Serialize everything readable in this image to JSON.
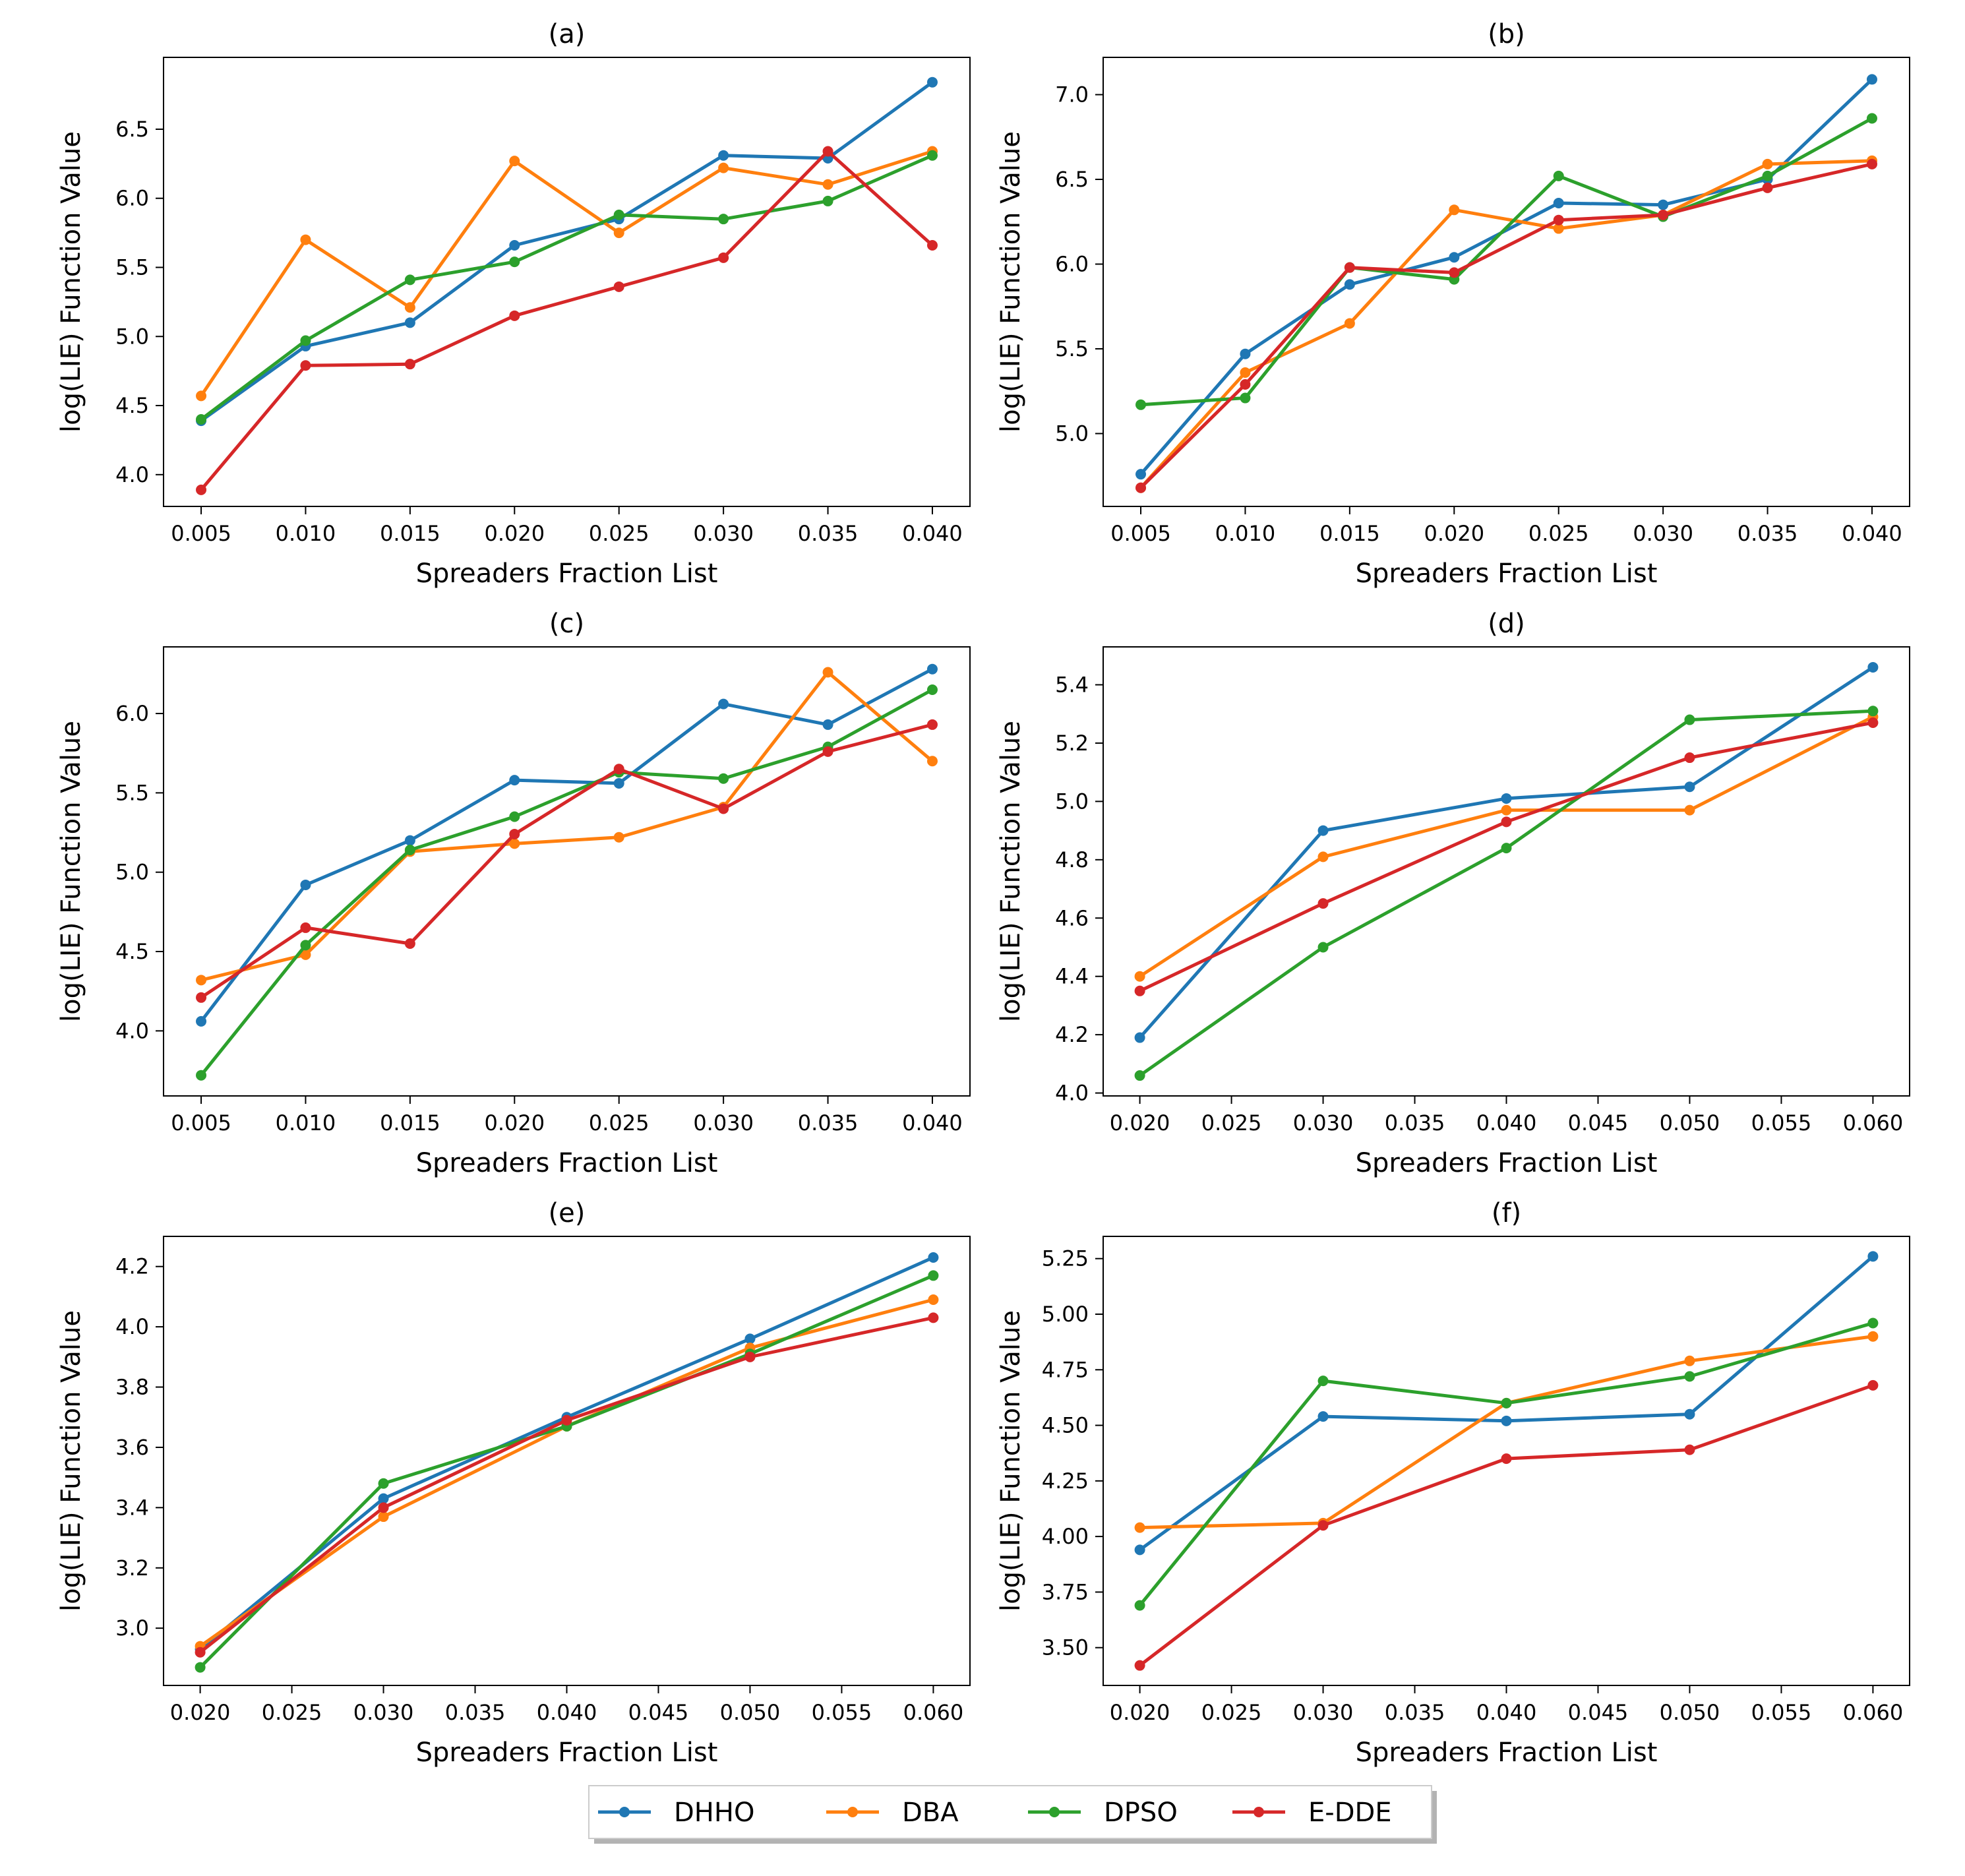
{
  "legend": {
    "placement": "bottom-center",
    "entries": [
      {
        "name": "DHHO",
        "color": "#1f77b4"
      },
      {
        "name": "DBA",
        "color": "#ff7f0e"
      },
      {
        "name": "DPSO",
        "color": "#2ca02c"
      },
      {
        "name": "E-DDE",
        "color": "#d62728"
      }
    ]
  },
  "chart_data": [
    {
      "type": "line",
      "title": "(a)",
      "xlabel": "Spreaders Fraction List",
      "ylabel": "log(LIE) Function Value",
      "x": [
        0.005,
        0.01,
        0.015,
        0.02,
        0.025,
        0.03,
        0.035,
        0.04
      ],
      "xticks": [
        "0.005",
        "0.010",
        "0.015",
        "0.020",
        "0.025",
        "0.030",
        "0.035",
        "0.040"
      ],
      "xlim": [
        0.0032,
        0.0418
      ],
      "yticks": [
        "4.0",
        "4.5",
        "5.0",
        "5.5",
        "6.0",
        "6.5"
      ],
      "ylim": [
        3.77,
        7.02
      ],
      "series": [
        {
          "name": "DHHO",
          "values": [
            4.39,
            4.93,
            5.1,
            5.66,
            5.85,
            6.31,
            6.29,
            6.84
          ]
        },
        {
          "name": "DBA",
          "values": [
            4.57,
            5.7,
            5.21,
            6.27,
            5.75,
            6.22,
            6.1,
            6.34
          ]
        },
        {
          "name": "DPSO",
          "values": [
            4.4,
            4.97,
            5.41,
            5.54,
            5.88,
            5.85,
            5.98,
            6.31
          ]
        },
        {
          "name": "E-DDE",
          "values": [
            3.89,
            4.79,
            4.8,
            5.15,
            5.36,
            5.57,
            6.34,
            5.66
          ]
        }
      ]
    },
    {
      "type": "line",
      "title": "(b)",
      "xlabel": "Spreaders Fraction List",
      "ylabel": "log(LIE) Function Value",
      "x": [
        0.005,
        0.01,
        0.015,
        0.02,
        0.025,
        0.03,
        0.035,
        0.04
      ],
      "xticks": [
        "0.005",
        "0.010",
        "0.015",
        "0.020",
        "0.025",
        "0.030",
        "0.035",
        "0.040"
      ],
      "xlim": [
        0.0032,
        0.0418
      ],
      "yticks": [
        "5.0",
        "5.5",
        "6.0",
        "6.5",
        "7.0"
      ],
      "ylim": [
        4.57,
        7.22
      ],
      "series": [
        {
          "name": "DHHO",
          "values": [
            4.76,
            5.47,
            5.88,
            6.04,
            6.36,
            6.35,
            6.5,
            7.09
          ]
        },
        {
          "name": "DBA",
          "values": [
            4.68,
            5.36,
            5.65,
            6.32,
            6.21,
            6.29,
            6.59,
            6.61
          ]
        },
        {
          "name": "DPSO",
          "values": [
            5.17,
            5.21,
            5.98,
            5.91,
            6.52,
            6.28,
            6.52,
            6.86
          ]
        },
        {
          "name": "E-DDE",
          "values": [
            4.68,
            5.29,
            5.98,
            5.95,
            6.26,
            6.29,
            6.45,
            6.59
          ]
        }
      ]
    },
    {
      "type": "line",
      "title": "(c)",
      "xlabel": "Spreaders Fraction List",
      "ylabel": "log(LIE) Function Value",
      "x": [
        0.005,
        0.01,
        0.015,
        0.02,
        0.025,
        0.03,
        0.035,
        0.04
      ],
      "xticks": [
        "0.005",
        "0.010",
        "0.015",
        "0.020",
        "0.025",
        "0.030",
        "0.035",
        "0.040"
      ],
      "xlim": [
        0.0032,
        0.0418
      ],
      "yticks": [
        "4.0",
        "4.5",
        "5.0",
        "5.5",
        "6.0"
      ],
      "ylim": [
        3.59,
        6.42
      ],
      "series": [
        {
          "name": "DHHO",
          "values": [
            4.06,
            4.92,
            5.2,
            5.58,
            5.56,
            6.06,
            5.93,
            6.28
          ]
        },
        {
          "name": "DBA",
          "values": [
            4.32,
            4.48,
            5.13,
            5.18,
            5.22,
            5.41,
            6.26,
            5.7
          ]
        },
        {
          "name": "DPSO",
          "values": [
            3.72,
            4.54,
            5.14,
            5.35,
            5.63,
            5.59,
            5.79,
            6.15
          ]
        },
        {
          "name": "E-DDE",
          "values": [
            4.21,
            4.65,
            4.55,
            5.24,
            5.65,
            5.4,
            5.76,
            5.93
          ]
        }
      ]
    },
    {
      "type": "line",
      "title": "(d)",
      "xlabel": "Spreaders Fraction List",
      "ylabel": "log(LIE) Function Value",
      "x": [
        0.02,
        0.03,
        0.04,
        0.05,
        0.06
      ],
      "xticks": [
        "0.020",
        "0.025",
        "0.030",
        "0.035",
        "0.040",
        "0.045",
        "0.050",
        "0.055",
        "0.060"
      ],
      "xlim": [
        0.018,
        0.062
      ],
      "yticks": [
        "4.0",
        "4.2",
        "4.4",
        "4.6",
        "4.8",
        "5.0",
        "5.2",
        "5.4"
      ],
      "ylim": [
        3.99,
        5.53
      ],
      "series": [
        {
          "name": "DHHO",
          "values": [
            4.19,
            4.9,
            5.01,
            5.05,
            5.46
          ]
        },
        {
          "name": "DBA",
          "values": [
            4.4,
            4.81,
            4.97,
            4.97,
            5.29
          ]
        },
        {
          "name": "DPSO",
          "values": [
            4.06,
            4.5,
            4.84,
            5.28,
            5.31
          ]
        },
        {
          "name": "E-DDE",
          "values": [
            4.35,
            4.65,
            4.93,
            5.15,
            5.27
          ]
        }
      ]
    },
    {
      "type": "line",
      "title": "(e)",
      "xlabel": "Spreaders Fraction List",
      "ylabel": "log(LIE) Function Value",
      "x": [
        0.02,
        0.03,
        0.04,
        0.05,
        0.06
      ],
      "xticks": [
        "0.020",
        "0.025",
        "0.030",
        "0.035",
        "0.040",
        "0.045",
        "0.050",
        "0.055",
        "0.060"
      ],
      "xlim": [
        0.018,
        0.062
      ],
      "yticks": [
        "3.0",
        "3.2",
        "3.4",
        "3.6",
        "3.8",
        "4.0",
        "4.2"
      ],
      "ylim": [
        2.81,
        4.3
      ],
      "series": [
        {
          "name": "DHHO",
          "values": [
            2.93,
            3.43,
            3.7,
            3.96,
            4.23
          ]
        },
        {
          "name": "DBA",
          "values": [
            2.94,
            3.37,
            3.67,
            3.93,
            4.09
          ]
        },
        {
          "name": "DPSO",
          "values": [
            2.87,
            3.48,
            3.67,
            3.91,
            4.17
          ]
        },
        {
          "name": "E-DDE",
          "values": [
            2.92,
            3.4,
            3.69,
            3.9,
            4.03
          ]
        }
      ]
    },
    {
      "type": "line",
      "title": "(f)",
      "xlabel": "Spreaders Fraction List",
      "ylabel": "log(LIE) Function Value",
      "x": [
        0.02,
        0.03,
        0.04,
        0.05,
        0.06
      ],
      "xticks": [
        "0.020",
        "0.025",
        "0.030",
        "0.035",
        "0.040",
        "0.045",
        "0.050",
        "0.055",
        "0.060"
      ],
      "xlim": [
        0.018,
        0.062
      ],
      "yticks": [
        "3.50",
        "3.75",
        "4.00",
        "4.25",
        "4.50",
        "4.75",
        "5.00",
        "5.25"
      ],
      "ylim": [
        3.33,
        5.35
      ],
      "series": [
        {
          "name": "DHHO",
          "values": [
            3.94,
            4.54,
            4.52,
            4.55,
            5.26
          ]
        },
        {
          "name": "DBA",
          "values": [
            4.04,
            4.06,
            4.6,
            4.79,
            4.9
          ]
        },
        {
          "name": "DPSO",
          "values": [
            3.69,
            4.7,
            4.6,
            4.72,
            4.96
          ]
        },
        {
          "name": "E-DDE",
          "values": [
            3.42,
            4.05,
            4.35,
            4.39,
            4.68
          ]
        }
      ]
    }
  ]
}
